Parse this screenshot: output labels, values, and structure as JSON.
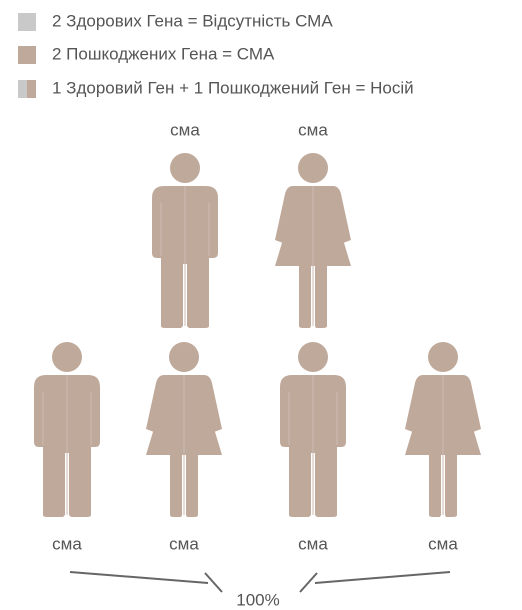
{
  "legend": [
    {
      "label": "2 Здорових Гена = Відсутність СМА"
    },
    {
      "label": "2 Пошкоджених Гена = СМА"
    },
    {
      "label": "1 Здоровий Ген + 1 Пошкоджений Ген = Носій"
    }
  ],
  "parents": [
    {
      "label": "сма"
    },
    {
      "label": "сма"
    }
  ],
  "children": [
    {
      "label": "сма"
    },
    {
      "label": "сма"
    },
    {
      "label": "сма"
    },
    {
      "label": "сма"
    }
  ],
  "probability": "100%"
}
